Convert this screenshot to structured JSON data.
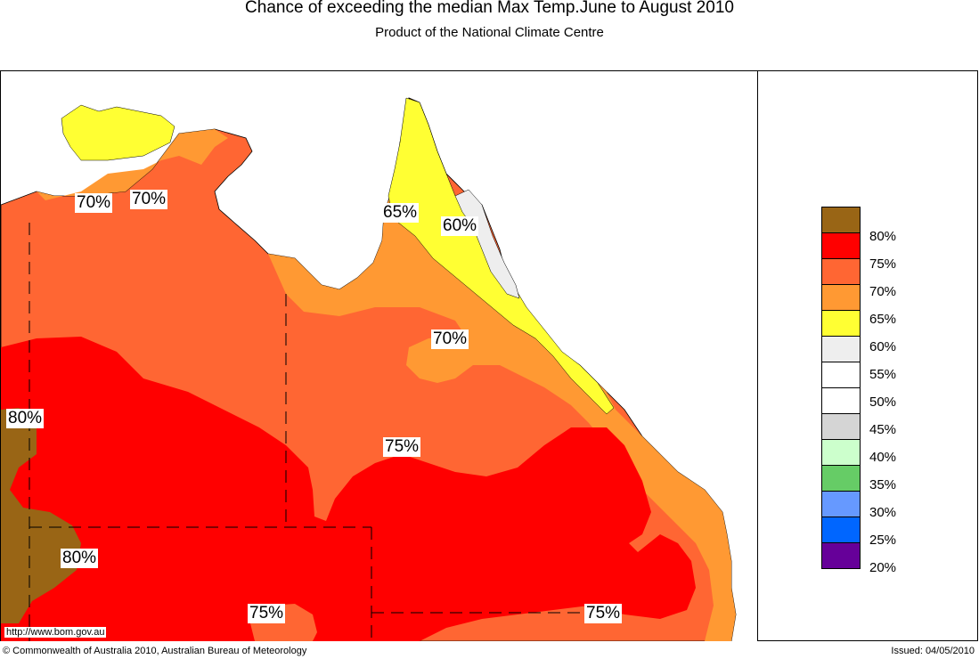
{
  "title": "Chance of exceeding the median Max Temp.June to August 2010",
  "subtitle": "Product of the National Climate Centre",
  "legend": {
    "items": [
      {
        "label": "80%",
        "color": "#996515"
      },
      {
        "label": "75%",
        "color": "#ff0000"
      },
      {
        "label": "70%",
        "color": "#ff6633"
      },
      {
        "label": "65%",
        "color": "#ff9933"
      },
      {
        "label": "60%",
        "color": "#ffff33"
      },
      {
        "label": "55%",
        "color": "#eeeeee"
      },
      {
        "label": "50%",
        "color": "#ffffff"
      },
      {
        "label": "45%",
        "color": "#ffffff"
      },
      {
        "label": "40%",
        "color": "#d5d5d5"
      },
      {
        "label": "35%",
        "color": "#ccffcc"
      },
      {
        "label": "30%",
        "color": "#66cc66"
      },
      {
        "label": "25%",
        "color": "#6699ff"
      },
      {
        "label": "20%",
        "color": "#0066ff"
      },
      {
        "label": "",
        "color": "#660099"
      }
    ]
  },
  "contour_labels": [
    "70%",
    "70%",
    "65%",
    "60%",
    "70%",
    "80%",
    "75%",
    "80%",
    "75%",
    "75%"
  ],
  "url": "http://www.bom.gov.au",
  "copyright": "© Commonwealth of Australia 2010, Australian Bureau of Meteorology",
  "issued": "Issued: 04/05/2010"
}
